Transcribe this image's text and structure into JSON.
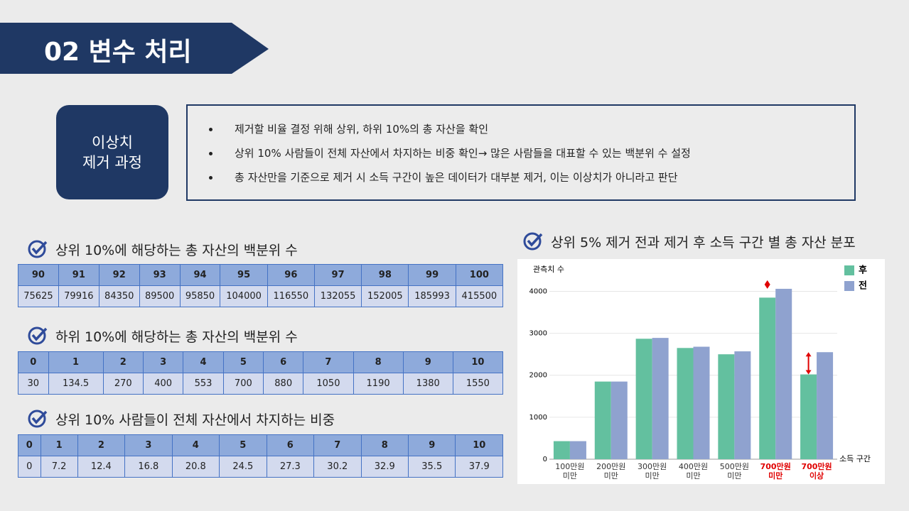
{
  "header": {
    "title": "02  변수 처리"
  },
  "process": {
    "label": [
      "이상치",
      "제거 과정"
    ],
    "bullets": [
      "제거할 비율 결정 위해 상위, 하위 10%의 총 자산을 확인",
      "상위 10% 사람들이 전체 자산에서 차지하는 비중 확인→ 많은 사람들을 대표할 수 있는 백분위 수 설정",
      "총 자산만을 기준으로 제거 시 소득 구간이 높은 데이터가 대부분 제거, 이는 이상치가 아니라고 판단"
    ]
  },
  "tables": [
    {
      "title": "상위 10%에 해당하는 총 자산의 백분위 수",
      "header": [
        90,
        91,
        92,
        93,
        94,
        95,
        96,
        97,
        98,
        99,
        100
      ],
      "row": [
        75625,
        79916,
        84350,
        89500,
        95850,
        104000,
        116550,
        132055,
        152005,
        185993,
        415500
      ]
    },
    {
      "title": "하위 10%에 해당하는 총 자산의 백분위 수",
      "header": [
        0,
        1,
        2,
        3,
        4,
        5,
        6,
        7,
        8,
        9,
        10
      ],
      "row": [
        30,
        134.5,
        270,
        400,
        553,
        700,
        880,
        1050,
        1190,
        1380,
        1550
      ]
    },
    {
      "title": "상위 10% 사람들이 전체 자산에서 차지하는 비중",
      "header": [
        0,
        1,
        2,
        3,
        4,
        5,
        6,
        7,
        8,
        9,
        10
      ],
      "row": [
        0,
        7.2,
        12.4,
        16.8,
        20.8,
        24.5,
        27.3,
        30.2,
        32.9,
        35.5,
        37.9
      ]
    }
  ],
  "chart_data": {
    "type": "bar",
    "title": "상위 5% 제거 전과 제거 후 소득 구간 별 총 자산 분포",
    "y_label": "관측치 수",
    "x_label": "소득 구간",
    "categories": [
      "100만원 미만",
      "200만원 미만",
      "300만원 미만",
      "400만원 미만",
      "500만원 미만",
      "700만원 미만",
      "700만원 이상"
    ],
    "category_colors": [
      "#333333",
      "#333333",
      "#333333",
      "#333333",
      "#333333",
      "#e00000",
      "#e00000"
    ],
    "series": [
      {
        "name": "후",
        "color": "#63c09f",
        "values": [
          430,
          1850,
          2870,
          2650,
          2500,
          3850,
          2020
        ]
      },
      {
        "name": "전",
        "color": "#8fa2cf",
        "values": [
          430,
          1850,
          2890,
          2680,
          2570,
          4060,
          2550
        ]
      }
    ],
    "ylim": [
      0,
      4600
    ],
    "yticks": [
      0,
      1000,
      2000,
      3000,
      4000
    ],
    "grid": true,
    "legend": "upper right"
  }
}
